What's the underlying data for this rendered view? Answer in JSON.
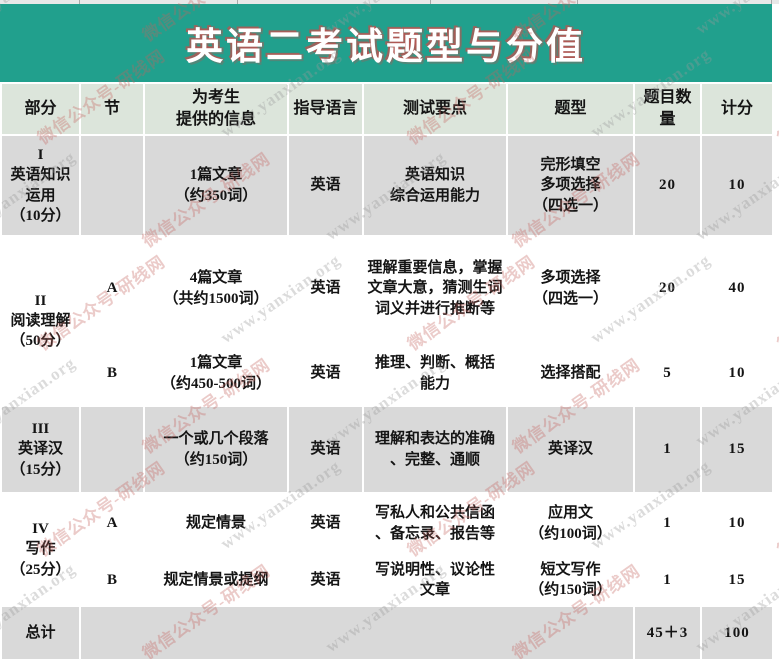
{
  "banner": {
    "title": "英语二考试题型与分值"
  },
  "colors": {
    "banner_teal": "#21a08d",
    "header_row_bg": "#dce5db",
    "gray_row_bg": "#d9d9d9",
    "white_row_bg": "#ffffff",
    "title_shadow_red": "#c0504d",
    "watermark_red": "#c4635e",
    "watermark_gray": "#9a9a9a"
  },
  "watermark": {
    "texts": [
      "www.yanxian.org",
      "微信公众号-研线网"
    ]
  },
  "table": {
    "headers": [
      "部分",
      "节",
      "为考生\n提供的信息",
      "指导语言",
      "测试要点",
      "题型",
      "题目数量",
      "计分"
    ],
    "rows": [
      {
        "part": "I\n英语知识\n运用\n（10分）",
        "section": "",
        "info": "1篇文章\n（约350词）",
        "lang": "英语",
        "points": "英语知识\n综合运用能力",
        "qtype": "完形填空\n多项选择\n（四选一）",
        "count": "20",
        "score": "10"
      },
      {
        "part": "II\n阅读理解\n（50分）",
        "section": "A",
        "info": "4篇文章\n（共约1500词）",
        "lang": "英语",
        "points": "理解重要信息，掌握文章大意，猜测生词词义并进行推断等",
        "qtype": "多项选择\n（四选一）",
        "count": "20",
        "score": "40"
      },
      {
        "section": "B",
        "info": "1篇文章\n（约450-500词）",
        "lang": "英语",
        "points": "推理、判断、概括\n能力",
        "qtype": "选择搭配",
        "count": "5",
        "score": "10"
      },
      {
        "part": "III\n英译汉\n（15分）",
        "section": "",
        "info": "一个或几个段落\n（约150词）",
        "lang": "英语",
        "points": "理解和表达的准确\n、完整、通顺",
        "qtype": "英译汉",
        "count": "1",
        "score": "15"
      },
      {
        "part": "IV\n写作\n（25分）",
        "section": "A",
        "info": "规定情景",
        "lang": "英语",
        "points": "写私人和公共信函\n、备忘录、报告等",
        "qtype": "应用文\n（约100词）",
        "count": "1",
        "score": "10"
      },
      {
        "section": "B",
        "info": "规定情景或提纲",
        "lang": "英语",
        "points": "写说明性、议论性\n文章",
        "qtype": "短文写作\n（约150词）",
        "count": "1",
        "score": "15"
      }
    ],
    "total": {
      "label": "总计",
      "count": "45＋3",
      "score": "100"
    }
  }
}
